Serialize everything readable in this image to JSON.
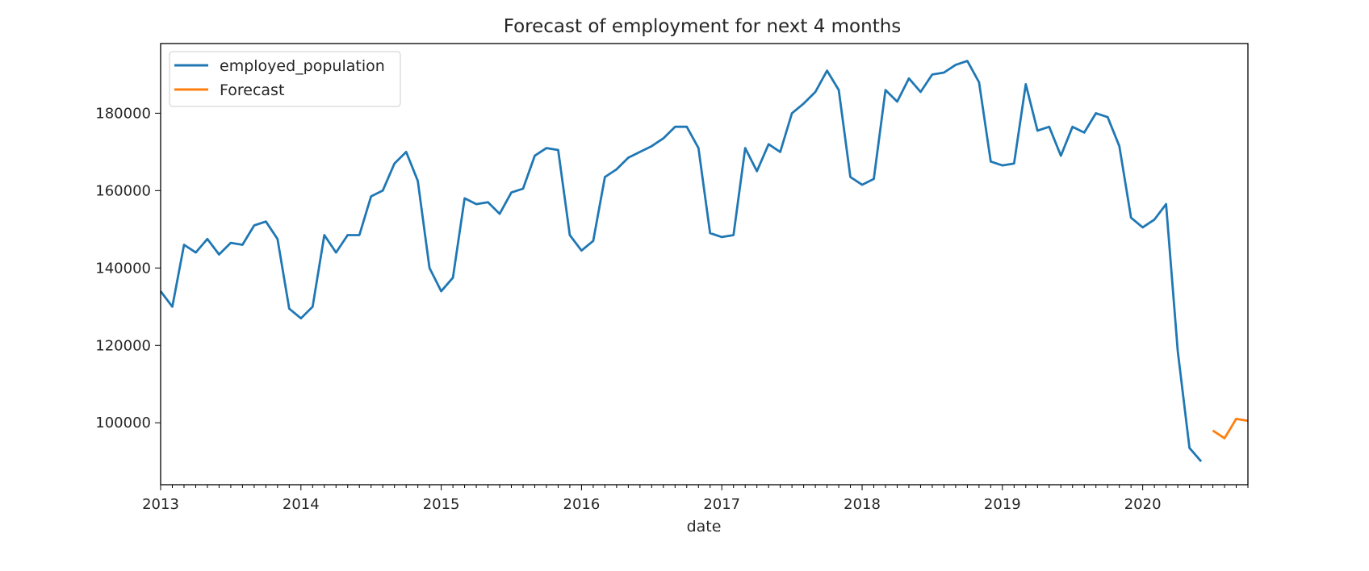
{
  "chart_data": {
    "type": "line",
    "title": "Forecast of employment for next 4 months",
    "xlabel": "date",
    "ylabel": "",
    "x_range": [
      "2013-01",
      "2020-10"
    ],
    "y_range": [
      84000,
      198000
    ],
    "x_ticks": [
      {
        "date": "2013-01",
        "label": "2013"
      },
      {
        "date": "2014-01",
        "label": "2014"
      },
      {
        "date": "2015-01",
        "label": "2015"
      },
      {
        "date": "2016-01",
        "label": "2016"
      },
      {
        "date": "2017-01",
        "label": "2017"
      },
      {
        "date": "2018-01",
        "label": "2018"
      },
      {
        "date": "2019-01",
        "label": "2019"
      },
      {
        "date": "2020-01",
        "label": "2020"
      }
    ],
    "y_ticks": [
      100000,
      120000,
      140000,
      160000,
      180000
    ],
    "y_tick_labels": [
      "100000",
      "120000",
      "140000",
      "160000",
      "180000"
    ],
    "grid": false,
    "legend_position": "top-left",
    "series": [
      {
        "name": "employed_population",
        "color": "#1f77b4",
        "x": [
          "2013-01",
          "2013-02",
          "2013-03",
          "2013-04",
          "2013-05",
          "2013-06",
          "2013-07",
          "2013-08",
          "2013-09",
          "2013-10",
          "2013-11",
          "2013-12",
          "2014-01",
          "2014-02",
          "2014-03",
          "2014-04",
          "2014-05",
          "2014-06",
          "2014-07",
          "2014-08",
          "2014-09",
          "2014-10",
          "2014-11",
          "2014-12",
          "2015-01",
          "2015-02",
          "2015-03",
          "2015-04",
          "2015-05",
          "2015-06",
          "2015-07",
          "2015-08",
          "2015-09",
          "2015-10",
          "2015-11",
          "2015-12",
          "2016-01",
          "2016-02",
          "2016-03",
          "2016-04",
          "2016-05",
          "2016-06",
          "2016-07",
          "2016-08",
          "2016-09",
          "2016-10",
          "2016-11",
          "2016-12",
          "2017-01",
          "2017-02",
          "2017-03",
          "2017-04",
          "2017-05",
          "2017-06",
          "2017-07",
          "2017-08",
          "2017-09",
          "2017-10",
          "2017-11",
          "2017-12",
          "2018-01",
          "2018-02",
          "2018-03",
          "2018-04",
          "2018-05",
          "2018-06",
          "2018-07",
          "2018-08",
          "2018-09",
          "2018-10",
          "2018-11",
          "2018-12",
          "2019-01",
          "2019-02",
          "2019-03",
          "2019-04",
          "2019-05",
          "2019-06",
          "2019-07",
          "2019-08",
          "2019-09",
          "2019-10",
          "2019-11",
          "2019-12",
          "2020-01",
          "2020-02",
          "2020-03",
          "2020-04",
          "2020-05",
          "2020-06"
        ],
        "values": [
          134000,
          130000,
          146000,
          144000,
          147500,
          143500,
          146500,
          146000,
          151000,
          152000,
          147500,
          129500,
          127000,
          130000,
          148500,
          144000,
          148500,
          148500,
          158500,
          160000,
          167000,
          170000,
          162500,
          140000,
          134000,
          137500,
          158000,
          156500,
          157000,
          154000,
          159500,
          160500,
          169000,
          171000,
          170500,
          148500,
          144500,
          147000,
          163500,
          165500,
          168500,
          170000,
          171500,
          173500,
          176500,
          176500,
          171000,
          149000,
          148000,
          148500,
          171000,
          165000,
          172000,
          170000,
          180000,
          182500,
          185500,
          191000,
          186000,
          163500,
          161500,
          163000,
          186000,
          183000,
          189000,
          185500,
          190000,
          190500,
          192500,
          193500,
          188000,
          167500,
          166500,
          167000,
          187500,
          175500,
          176500,
          169000,
          176500,
          175000,
          180000,
          179000,
          171500,
          153000,
          150500,
          152500,
          156500,
          118500,
          93500,
          90000
        ]
      },
      {
        "name": "Forecast",
        "color": "#ff7f0e",
        "x": [
          "2020-07",
          "2020-08",
          "2020-09",
          "2020-10"
        ],
        "values": [
          98000,
          96000,
          101000,
          100500
        ]
      }
    ]
  }
}
